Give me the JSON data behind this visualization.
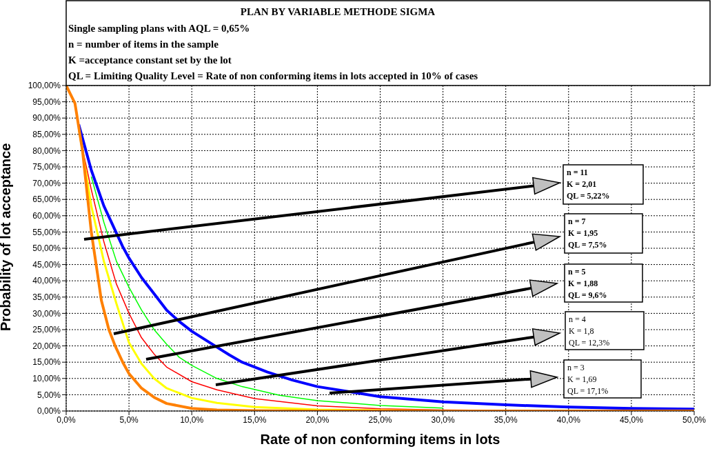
{
  "chart_data": {
    "type": "line",
    "title": "PLAN BY VARIABLE METHODE SIGMA",
    "subtitle": "Single sampling plans with AQL = 0,65%\nn = number of items in the sample\nK =acceptance constant set by the lot\nQL = Limiting Quality Level = Rate of non conforming items in lots accepted in 10% of cases",
    "xlabel": "Rate of non conforming items in lots",
    "ylabel": "Probability of lot acceptance",
    "annotations": [
      "n = 11\nK = 2,01\nQL = 5,22%",
      "n = 7\nK = 1,95\nQL = 7,5%",
      "n = 5\nK = 1,88\nQL = 9,6%",
      "n = 4\nK = 1,8\nQL = 12,3%",
      "n = 3\nK = 1,69\nQL = 17,1%"
    ],
    "series": [
      {
        "color": "#0000ff",
        "x": [
          1,
          2,
          3,
          4.5,
          5,
          6,
          7,
          8,
          9,
          10,
          13,
          14,
          16,
          18,
          20,
          25,
          30,
          35,
          40,
          45,
          50
        ],
        "values": [
          88,
          74,
          63,
          50.5,
          47,
          41,
          36,
          31,
          27.5,
          24.5,
          17.2,
          15,
          12,
          9.5,
          7.5,
          4.4,
          2.8,
          1.9,
          1.2,
          0.8,
          0.6
        ]
      },
      {
        "color": "#00ff00",
        "x": [
          2,
          3,
          4,
          5,
          6,
          7,
          8,
          9,
          10,
          12,
          14,
          17,
          20,
          25,
          30
        ],
        "values": [
          72,
          58,
          46,
          38,
          31,
          25,
          20.5,
          16.5,
          14,
          10,
          7.5,
          4.8,
          3.2,
          1.7,
          0.9
        ]
      },
      {
        "color": "#ff0000",
        "x": [
          1,
          2,
          3,
          4,
          5,
          6,
          7,
          8,
          10,
          12,
          15,
          20,
          25,
          30,
          40,
          50
        ],
        "values": [
          86,
          68,
          52,
          39,
          30,
          22.5,
          17.5,
          13.5,
          9,
          6.5,
          3.8,
          1.6,
          0.7,
          0.3,
          0.1,
          0
        ]
      },
      {
        "color": "#ffff00",
        "x": [
          1,
          2,
          3,
          4,
          5,
          6,
          7,
          8,
          10,
          12,
          15,
          20,
          30,
          50
        ],
        "values": [
          87,
          63,
          46,
          33,
          21,
          14.5,
          10,
          7,
          4,
          2.5,
          1.2,
          0.4,
          0.1,
          0
        ]
      },
      {
        "color": "#ff8000",
        "x": [
          0,
          0.7,
          1.3,
          2,
          2.5,
          2.8,
          3.4,
          3.9,
          4.5,
          5,
          6,
          7,
          8,
          10,
          12,
          15,
          20,
          50
        ],
        "values": [
          100,
          94.5,
          80,
          55,
          42,
          34,
          25,
          20,
          15,
          11.5,
          7,
          4.2,
          2.3,
          0.8,
          0.3,
          0.1,
          0,
          0
        ]
      }
    ],
    "xlim": [
      0,
      50
    ],
    "ylim": [
      0,
      100
    ],
    "xticks": [
      {
        "value": 0,
        "label": "0,0%"
      },
      {
        "value": 5,
        "label": "5,0%"
      },
      {
        "value": 10,
        "label": "10,0%"
      },
      {
        "value": 15,
        "label": "15,0%"
      },
      {
        "value": 20,
        "label": "20,0%"
      },
      {
        "value": 25,
        "label": "25,0%"
      },
      {
        "value": 30,
        "label": "30,0%"
      },
      {
        "value": 35,
        "label": "35,0%"
      },
      {
        "value": 40,
        "label": "40,0%"
      },
      {
        "value": 45,
        "label": "45,0%"
      },
      {
        "value": 50,
        "label": "50,0%"
      }
    ],
    "yticks": [
      {
        "value": 0,
        "label": "0,00%"
      },
      {
        "value": 5,
        "label": "5,00%"
      },
      {
        "value": 10,
        "label": "10,00%"
      },
      {
        "value": 15,
        "label": "15,00%"
      },
      {
        "value": 20,
        "label": "20,00%"
      },
      {
        "value": 25,
        "label": "25,00%"
      },
      {
        "value": 30,
        "label": "30,00%"
      },
      {
        "value": 35,
        "label": "35,00%"
      },
      {
        "value": 40,
        "label": "40,00%"
      },
      {
        "value": 45,
        "label": "45,00%"
      },
      {
        "value": 50,
        "label": "50,00%"
      },
      {
        "value": 55,
        "label": "55,00%"
      },
      {
        "value": 60,
        "label": "60,00%"
      },
      {
        "value": 65,
        "label": "65,00%"
      },
      {
        "value": 70,
        "label": "70,00%"
      },
      {
        "value": 75,
        "label": "75,00%"
      },
      {
        "value": 80,
        "label": "80,00%"
      },
      {
        "value": 85,
        "label": "85,00%"
      },
      {
        "value": 90,
        "label": "90,00%"
      },
      {
        "value": 95,
        "label": "95,00%"
      },
      {
        "value": 100,
        "label": "100,00%"
      }
    ],
    "grid": true
  }
}
